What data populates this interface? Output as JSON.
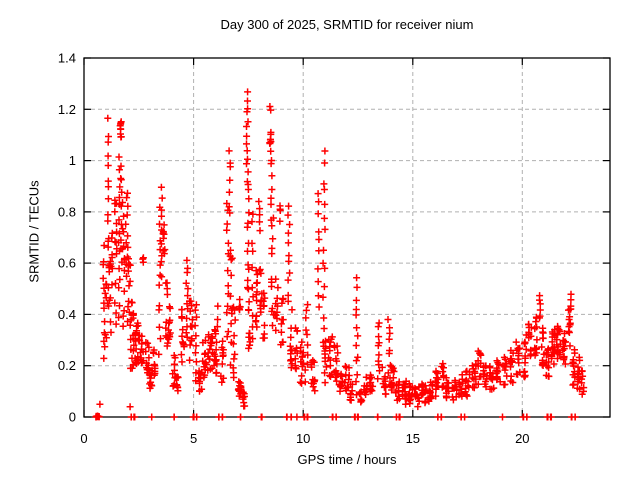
{
  "chart_data": {
    "type": "scatter",
    "title": "Day 300 of 2025, SRMTID for receiver nium",
    "xlabel": "GPS time / hours",
    "ylabel": "SRMTID / TECUs",
    "xlim": [
      0,
      24
    ],
    "ylim": [
      0,
      1.4
    ],
    "xticks": [
      0,
      5,
      10,
      15,
      20
    ],
    "xtick_labels": [
      "0",
      "5",
      "10",
      "15",
      "20"
    ],
    "yticks": [
      0,
      0.2,
      0.4,
      0.6,
      0.8,
      1,
      1.2,
      1.4
    ],
    "ytick_labels": [
      "0",
      "0.2",
      "0.4",
      "0.6",
      "0.8",
      "1",
      "1.2",
      "1.4"
    ],
    "grid": true,
    "legend": false,
    "marker": {
      "shape": "plus",
      "color": "#ff0000",
      "size": 7
    },
    "axis_color": "#000000",
    "grid_color": "#b0b0b0",
    "point_clusters_format": [
      "x_center_hours",
      "x_halfwidth_hours",
      "y_min_TECUs",
      "y_max_TECUs",
      "n_points",
      "vertical_string_mode"
    ],
    "point_clusters": [
      [
        0.6,
        0.1,
        0.0,
        0.004,
        16,
        0
      ],
      [
        0.72,
        0.01,
        0.05,
        0.05,
        1,
        0
      ],
      [
        0.9,
        0.05,
        0.22,
        0.66,
        12,
        1
      ],
      [
        1.0,
        0.04,
        0.3,
        0.56,
        8,
        0
      ],
      [
        1.1,
        0.02,
        0.75,
        1.15,
        10,
        1
      ],
      [
        1.12,
        0.04,
        0.28,
        0.72,
        10,
        0
      ],
      [
        1.25,
        0.05,
        0.3,
        0.75,
        12,
        0
      ],
      [
        1.45,
        0.05,
        0.35,
        0.85,
        14,
        0
      ],
      [
        1.6,
        0.04,
        0.4,
        1.0,
        14,
        1
      ],
      [
        1.68,
        0.03,
        1.04,
        1.16,
        9,
        0
      ],
      [
        1.72,
        0.05,
        0.6,
        1.0,
        10,
        0
      ],
      [
        1.8,
        0.05,
        0.35,
        0.8,
        12,
        0
      ],
      [
        1.95,
        0.05,
        0.55,
        0.88,
        11,
        1
      ],
      [
        2.05,
        0.07,
        0.3,
        0.62,
        12,
        0
      ],
      [
        2.1,
        0.01,
        0.04,
        0.04,
        1,
        0
      ],
      [
        2.15,
        0.02,
        0,
        0,
        2,
        0
      ],
      [
        2.2,
        0.09,
        0.18,
        0.45,
        16,
        0
      ],
      [
        2.3,
        0.02,
        0,
        0,
        2,
        0
      ],
      [
        2.4,
        0.1,
        0.2,
        0.38,
        18,
        0
      ],
      [
        2.62,
        0.09,
        0.2,
        0.35,
        12,
        0
      ],
      [
        2.7,
        0.02,
        0.59,
        0.63,
        3,
        0
      ],
      [
        2.9,
        0.09,
        0.17,
        0.3,
        12,
        0
      ],
      [
        3.05,
        0.07,
        0.11,
        0.2,
        12,
        0
      ],
      [
        3.1,
        0.02,
        0,
        0,
        2,
        0
      ],
      [
        3.2,
        0.06,
        0.14,
        0.28,
        9,
        0
      ],
      [
        3.45,
        0.04,
        0.25,
        0.8,
        12,
        1
      ],
      [
        3.55,
        0.03,
        0.55,
        0.9,
        9,
        1
      ],
      [
        3.65,
        0.04,
        0.6,
        0.78,
        10,
        0
      ],
      [
        3.78,
        0.05,
        0.25,
        0.55,
        10,
        0
      ],
      [
        3.9,
        0.05,
        0.28,
        0.45,
        10,
        0
      ],
      [
        4.1,
        0.07,
        0.12,
        0.25,
        10,
        0
      ],
      [
        4.1,
        0.02,
        0,
        0,
        2,
        0
      ],
      [
        4.25,
        0.05,
        0.1,
        0.16,
        9,
        0
      ],
      [
        4.5,
        0.07,
        0.2,
        0.45,
        12,
        0
      ],
      [
        4.7,
        0.05,
        0.3,
        0.62,
        12,
        1
      ],
      [
        4.88,
        0.07,
        0.22,
        0.48,
        12,
        0
      ],
      [
        5.0,
        0.02,
        0,
        0,
        2,
        0
      ],
      [
        5.1,
        0.04,
        0.15,
        0.45,
        10,
        1
      ],
      [
        5.15,
        0.02,
        0,
        0,
        2,
        0
      ],
      [
        5.3,
        0.07,
        0.1,
        0.18,
        10,
        0
      ],
      [
        5.5,
        0.09,
        0.15,
        0.3,
        12,
        0
      ],
      [
        5.75,
        0.11,
        0.17,
        0.33,
        16,
        0
      ],
      [
        6.0,
        0.09,
        0.15,
        0.35,
        14,
        0
      ],
      [
        6.1,
        0.02,
        0.35,
        0.42,
        3,
        1
      ],
      [
        6.15,
        0.02,
        0,
        0,
        2,
        0
      ],
      [
        6.3,
        0.07,
        0.12,
        0.3,
        10,
        0
      ],
      [
        6.3,
        0.02,
        0,
        0,
        2,
        0
      ],
      [
        6.55,
        0.04,
        0.3,
        0.85,
        13,
        1
      ],
      [
        6.65,
        0.03,
        0.78,
        1.05,
        7,
        1
      ],
      [
        6.72,
        0.05,
        0.2,
        0.7,
        12,
        0
      ],
      [
        6.85,
        0.05,
        0.15,
        0.45,
        10,
        0
      ],
      [
        7.1,
        0.07,
        0.08,
        0.14,
        14,
        0
      ],
      [
        7.12,
        0.04,
        0.36,
        0.46,
        6,
        0
      ],
      [
        7.15,
        0.02,
        0,
        0,
        2,
        0
      ],
      [
        7.3,
        0.05,
        0.04,
        0.1,
        8,
        0
      ],
      [
        7.45,
        0.04,
        0.92,
        1.27,
        13,
        1
      ],
      [
        7.5,
        0.05,
        0.45,
        0.92,
        13,
        1
      ],
      [
        7.55,
        0.05,
        0.25,
        0.5,
        10,
        0
      ],
      [
        7.7,
        0.04,
        0.3,
        0.8,
        10,
        1
      ],
      [
        7.85,
        0.06,
        0.35,
        0.6,
        12,
        0
      ],
      [
        8.0,
        0.03,
        0.72,
        0.85,
        5,
        1
      ],
      [
        8.05,
        0.05,
        0.4,
        0.62,
        9,
        0
      ],
      [
        8.1,
        0.02,
        0,
        0,
        2,
        0
      ],
      [
        8.18,
        0.07,
        0.3,
        0.5,
        10,
        0
      ],
      [
        8.5,
        0.03,
        1.05,
        1.24,
        10,
        0
      ],
      [
        8.55,
        0.04,
        0.78,
        1.05,
        8,
        1
      ],
      [
        8.6,
        0.05,
        0.35,
        0.78,
        12,
        0
      ],
      [
        8.78,
        0.07,
        0.3,
        0.55,
        10,
        0
      ],
      [
        8.95,
        0.03,
        0.74,
        0.84,
        4,
        0
      ],
      [
        9.05,
        0.07,
        0.25,
        0.5,
        10,
        0
      ],
      [
        9.25,
        0.02,
        0,
        0,
        2,
        0
      ],
      [
        9.35,
        0.04,
        0.45,
        0.82,
        11,
        1
      ],
      [
        9.45,
        0.05,
        0.15,
        0.45,
        12,
        0
      ],
      [
        9.45,
        0.02,
        0,
        0,
        2,
        0
      ],
      [
        9.7,
        0.07,
        0.15,
        0.35,
        10,
        0
      ],
      [
        9.7,
        0.02,
        0,
        0,
        2,
        0
      ],
      [
        9.95,
        0.09,
        0.12,
        0.3,
        12,
        0
      ],
      [
        10.05,
        0.02,
        0,
        0,
        2,
        0
      ],
      [
        10.15,
        0.06,
        0.15,
        0.45,
        10,
        1
      ],
      [
        10.2,
        0.02,
        0,
        0,
        2,
        0
      ],
      [
        10.45,
        0.09,
        0.1,
        0.25,
        12,
        0
      ],
      [
        10.7,
        0.03,
        0.44,
        0.87,
        10,
        1
      ],
      [
        10.95,
        0.05,
        0.3,
        0.72,
        9,
        1
      ],
      [
        10.97,
        0.03,
        0.78,
        1.02,
        6,
        1
      ],
      [
        11.0,
        0.06,
        0.12,
        0.3,
        10,
        0
      ],
      [
        11.25,
        0.09,
        0.15,
        0.32,
        12,
        0
      ],
      [
        11.35,
        0.02,
        0,
        0,
        2,
        0
      ],
      [
        11.5,
        0.09,
        0.12,
        0.28,
        12,
        0
      ],
      [
        11.5,
        0.02,
        0,
        0,
        2,
        0
      ],
      [
        11.72,
        0.09,
        0.1,
        0.22,
        10,
        0
      ],
      [
        12.0,
        0.11,
        0.1,
        0.2,
        12,
        0
      ],
      [
        12.2,
        0.06,
        0.06,
        0.15,
        9,
        0
      ],
      [
        12.35,
        0.02,
        0,
        0,
        2,
        0
      ],
      [
        12.45,
        0.04,
        0.1,
        0.53,
        13,
        1
      ],
      [
        12.5,
        0.02,
        0,
        0,
        2,
        0
      ],
      [
        12.62,
        0.05,
        0.05,
        0.1,
        8,
        0
      ],
      [
        12.85,
        0.09,
        0.08,
        0.18,
        10,
        0
      ],
      [
        13.1,
        0.09,
        0.08,
        0.18,
        10,
        0
      ],
      [
        13.4,
        0.02,
        0,
        0,
        2,
        0
      ],
      [
        13.45,
        0.05,
        0.15,
        0.37,
        10,
        1
      ],
      [
        13.7,
        0.09,
        0.08,
        0.2,
        10,
        0
      ],
      [
        13.95,
        0.08,
        0.15,
        0.38,
        9,
        1
      ],
      [
        14.05,
        0.1,
        0.08,
        0.2,
        12,
        0
      ],
      [
        14.25,
        0.02,
        0,
        0,
        2,
        0
      ],
      [
        14.3,
        0.09,
        0.06,
        0.15,
        11,
        0
      ],
      [
        14.4,
        0.02,
        0,
        0,
        2,
        0
      ],
      [
        14.6,
        0.11,
        0.04,
        0.14,
        14,
        0
      ],
      [
        14.9,
        0.11,
        0.05,
        0.13,
        14,
        0
      ],
      [
        15.2,
        0.11,
        0.04,
        0.12,
        14,
        0
      ],
      [
        15.5,
        0.11,
        0.05,
        0.13,
        14,
        0
      ],
      [
        15.8,
        0.11,
        0.05,
        0.14,
        14,
        0
      ],
      [
        16.1,
        0.09,
        0.06,
        0.18,
        12,
        0
      ],
      [
        16.15,
        0.02,
        0,
        0,
        2,
        0
      ],
      [
        16.3,
        0.02,
        0,
        0,
        2,
        0
      ],
      [
        16.35,
        0.07,
        0.08,
        0.22,
        10,
        0
      ],
      [
        16.6,
        0.09,
        0.06,
        0.16,
        11,
        0
      ],
      [
        16.9,
        0.11,
        0.06,
        0.16,
        13,
        0
      ],
      [
        17.2,
        0.11,
        0.07,
        0.17,
        13,
        0
      ],
      [
        17.2,
        0.02,
        0,
        0,
        2,
        0
      ],
      [
        17.35,
        0.02,
        0,
        0,
        2,
        0
      ],
      [
        17.5,
        0.11,
        0.08,
        0.18,
        13,
        0
      ],
      [
        17.8,
        0.09,
        0.1,
        0.22,
        12,
        0
      ],
      [
        18.05,
        0.07,
        0.12,
        0.27,
        10,
        0
      ],
      [
        18.3,
        0.09,
        0.1,
        0.2,
        12,
        0
      ],
      [
        18.6,
        0.11,
        0.1,
        0.2,
        12,
        0
      ],
      [
        18.9,
        0.09,
        0.12,
        0.22,
        12,
        0
      ],
      [
        19.1,
        0.02,
        0,
        0,
        2,
        0
      ],
      [
        19.2,
        0.09,
        0.12,
        0.24,
        12,
        0
      ],
      [
        19.5,
        0.09,
        0.13,
        0.26,
        12,
        0
      ],
      [
        19.8,
        0.09,
        0.15,
        0.3,
        12,
        0
      ],
      [
        20.05,
        0.02,
        0,
        0,
        2,
        0
      ],
      [
        20.1,
        0.09,
        0.15,
        0.32,
        14,
        0
      ],
      [
        20.2,
        0.02,
        0,
        0,
        2,
        0
      ],
      [
        20.35,
        0.07,
        0.2,
        0.38,
        12,
        0
      ],
      [
        20.6,
        0.07,
        0.22,
        0.4,
        12,
        0
      ],
      [
        20.8,
        0.03,
        0.38,
        0.47,
        6,
        1
      ],
      [
        20.95,
        0.07,
        0.2,
        0.35,
        12,
        0
      ],
      [
        21.15,
        0.07,
        0.15,
        0.28,
        12,
        0
      ],
      [
        21.15,
        0.02,
        0,
        0,
        2,
        0
      ],
      [
        21.3,
        0.02,
        0,
        0,
        2,
        0
      ],
      [
        21.4,
        0.09,
        0.2,
        0.35,
        16,
        0
      ],
      [
        21.65,
        0.09,
        0.22,
        0.36,
        16,
        0
      ],
      [
        21.9,
        0.07,
        0.2,
        0.33,
        12,
        0
      ],
      [
        22.15,
        0.05,
        0.25,
        0.42,
        10,
        0
      ],
      [
        22.2,
        0.02,
        0.42,
        0.48,
        4,
        1
      ],
      [
        22.25,
        0.02,
        0,
        0,
        2,
        0
      ],
      [
        22.35,
        0.07,
        0.12,
        0.3,
        12,
        0
      ],
      [
        22.4,
        0.02,
        0,
        0,
        2,
        0
      ],
      [
        22.55,
        0.07,
        0.1,
        0.25,
        12,
        0
      ],
      [
        22.75,
        0.05,
        0.08,
        0.2,
        9,
        0
      ]
    ]
  }
}
